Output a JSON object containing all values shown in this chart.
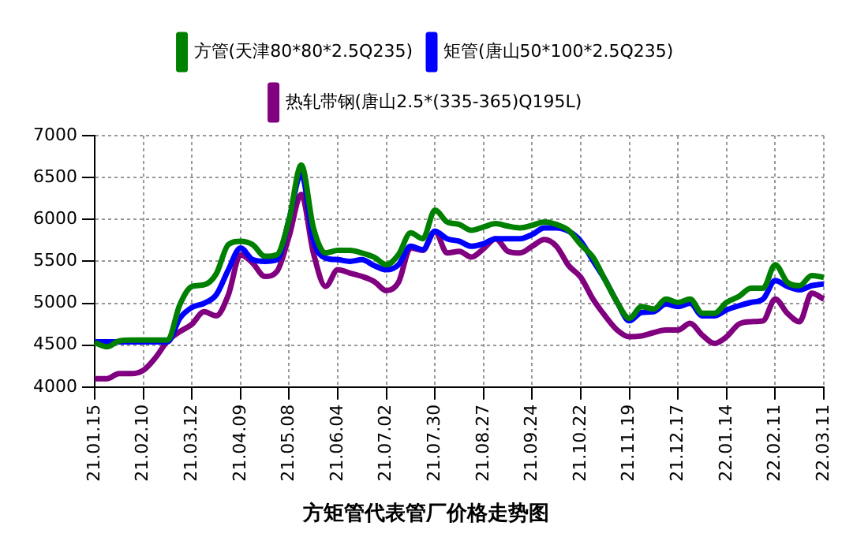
{
  "chart_data": {
    "type": "line",
    "title": "方矩管代表管厂价格走势图",
    "categories": [
      "21.01.15",
      null,
      null,
      null,
      "21.02.10",
      null,
      null,
      null,
      "21.03.12",
      null,
      null,
      null,
      "21.04.09",
      null,
      null,
      null,
      "21.05.08",
      null,
      null,
      null,
      "21.06.04",
      null,
      null,
      null,
      "21.07.02",
      null,
      null,
      null,
      "21.07.30",
      null,
      null,
      null,
      "21.08.27",
      null,
      null,
      null,
      "21.09.24",
      null,
      null,
      null,
      "21.10.22",
      null,
      null,
      null,
      "21.11.19",
      null,
      null,
      null,
      "21.12.17",
      null,
      null,
      null,
      "22.01.14",
      null,
      null,
      null,
      "22.02.11",
      null,
      null,
      null,
      "22.03.11"
    ],
    "series": [
      {
        "name": "方管(天津80*80*2.5Q235)",
        "color": "#008000",
        "values": [
          4530,
          4480,
          4550,
          4560,
          4560,
          4560,
          4560,
          4980,
          5200,
          5220,
          5350,
          5700,
          5740,
          5700,
          5560,
          5580,
          6000,
          6650,
          5900,
          5600,
          5630,
          5630,
          5600,
          5550,
          5460,
          5580,
          5840,
          5770,
          6110,
          5970,
          5940,
          5870,
          5910,
          5950,
          5920,
          5900,
          5930,
          5970,
          5940,
          5870,
          5700,
          5550,
          5280,
          5010,
          4820,
          4960,
          4930,
          5050,
          5010,
          5050,
          4880,
          4880,
          5010,
          5080,
          5180,
          5180,
          5460,
          5250,
          5210,
          5330,
          5310
        ]
      },
      {
        "name": "矩管(唐山50*100*2.5Q235)",
        "color": "#0000ff",
        "values": [
          4540,
          4540,
          4540,
          4540,
          4540,
          4540,
          4540,
          4820,
          4950,
          5000,
          5100,
          5400,
          5660,
          5520,
          5500,
          5520,
          6000,
          6550,
          5750,
          5540,
          5520,
          5500,
          5520,
          5450,
          5400,
          5460,
          5680,
          5640,
          5860,
          5770,
          5740,
          5680,
          5710,
          5770,
          5770,
          5770,
          5820,
          5900,
          5900,
          5860,
          5740,
          5510,
          5280,
          5010,
          4790,
          4890,
          4900,
          4990,
          4960,
          5000,
          4850,
          4850,
          4920,
          4970,
          5010,
          5050,
          5270,
          5200,
          5160,
          5210,
          5230
        ]
      },
      {
        "name": "热轧带钢(唐山2.5*(335-365)Q195L)",
        "color": "#800080",
        "values": [
          4100,
          4100,
          4160,
          4160,
          4200,
          4350,
          4550,
          4660,
          4750,
          4900,
          4850,
          5100,
          5580,
          5480,
          5320,
          5380,
          5800,
          6300,
          5600,
          5200,
          5400,
          5360,
          5320,
          5260,
          5150,
          5250,
          5660,
          5630,
          5860,
          5600,
          5620,
          5550,
          5650,
          5770,
          5620,
          5600,
          5680,
          5760,
          5680,
          5450,
          5310,
          5050,
          4850,
          4680,
          4600,
          4610,
          4650,
          4680,
          4680,
          4760,
          4620,
          4520,
          4600,
          4750,
          4780,
          4790,
          5050,
          4880,
          4780,
          5120,
          5050
        ]
      }
    ],
    "ylim": [
      4000,
      7000
    ],
    "yticks": [
      4000,
      4500,
      5000,
      5500,
      6000,
      6500,
      7000
    ],
    "grid": true,
    "legend": "top",
    "marker": "none",
    "line_style": "solid"
  }
}
